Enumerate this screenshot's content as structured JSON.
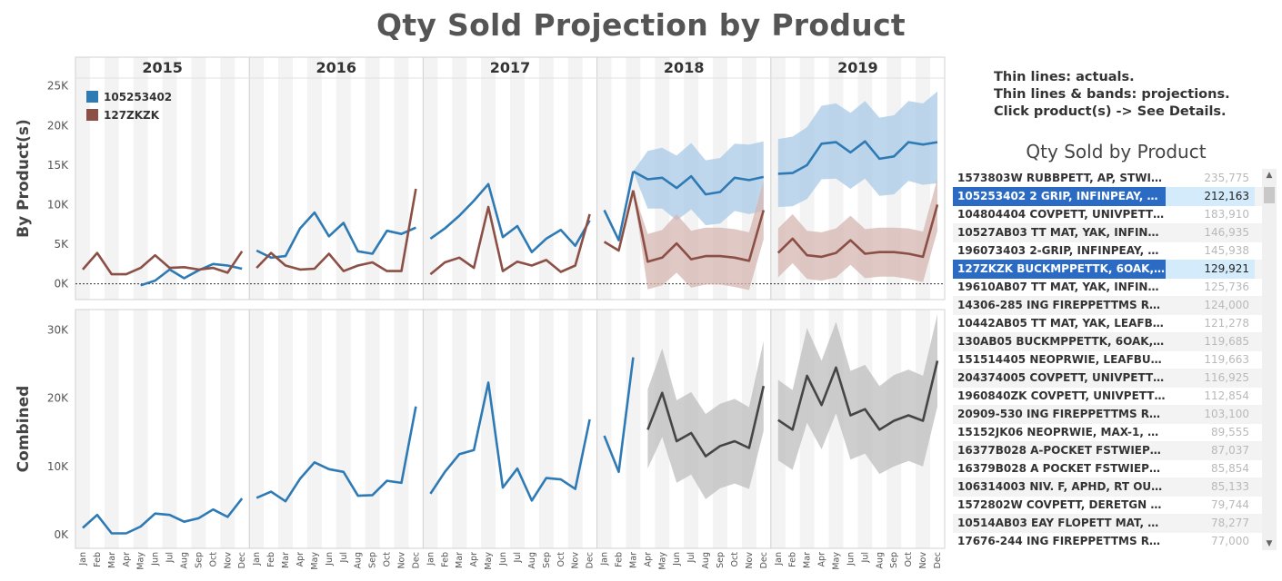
{
  "title": "Qty Sold Projection by Product",
  "notes": [
    "Thin lines: actuals.",
    "Thin lines & bands: projections.",
    "Click product(s) -> See Details."
  ],
  "colors": {
    "product_a": "#2e7ab5",
    "product_b": "#8b4f45",
    "combined_actual": "#2e7ab5",
    "combined_projection": "#454545",
    "band_a": "#a9c9e6",
    "band_b": "#d5b6b2",
    "band_combined": "#bdbdbd",
    "selected_row": "#2c6bc4",
    "selected_value_bg": "#d3ebfa"
  },
  "chart_data": [
    {
      "type": "line",
      "panel": "By Product(s)",
      "ylabel": "By Product(s)",
      "ylim": [
        -2000,
        26000
      ],
      "yticks": [
        0,
        5000,
        10000,
        15000,
        20000,
        25000
      ],
      "ytick_labels": [
        "0K",
        "5K",
        "10K",
        "15K",
        "20K",
        "25K"
      ],
      "years": [
        "2015",
        "2016",
        "2017",
        "2018",
        "2019"
      ],
      "months": [
        "Jan",
        "Feb",
        "Mar",
        "Apr",
        "May",
        "Jun",
        "Jul",
        "Aug",
        "Sep",
        "Oct",
        "Nov",
        "Dec"
      ],
      "legend": [
        "105253402",
        "127ZKZK"
      ],
      "series": [
        {
          "name": "105253402",
          "actual": [
            [
              null,
              null,
              null,
              null,
              -200,
              400,
              1800,
              700,
              1700,
              2500,
              2300,
              1900
            ],
            [
              4200,
              3300,
              3500,
              7000,
              9000,
              6000,
              7700,
              4100,
              3800,
              6700,
              6300,
              7100
            ],
            [
              5700,
              7000,
              8600,
              10500,
              12600,
              5900,
              7300,
              4000,
              5700,
              6800,
              4800,
              8000
            ],
            [
              9300,
              5500,
              14200,
              null,
              null,
              null,
              null,
              null,
              null,
              null,
              null,
              null
            ],
            [
              null,
              null,
              null,
              null,
              null,
              null,
              null,
              null,
              null,
              null,
              null,
              null
            ]
          ],
          "projection": [
            [
              null,
              null,
              14200,
              13200,
              13400,
              12100,
              13600,
              11300,
              11600,
              13400,
              13100,
              13500
            ],
            [
              13900,
              14000,
              15000,
              17700,
              17900,
              16600,
              18000,
              15800,
              16100,
              17900,
              17600,
              17900
            ]
          ],
          "band_low": [
            [
              null,
              null,
              14200,
              9500,
              9500,
              8000,
              9400,
              7400,
              7600,
              9200,
              8800,
              9200
            ],
            [
              9700,
              9800,
              10700,
              13200,
              13300,
              12000,
              13300,
              11100,
              11300,
              13000,
              12500,
              12700
            ]
          ],
          "band_high": [
            [
              null,
              null,
              14200,
              16800,
              17200,
              16200,
              17800,
              15600,
              15900,
              17700,
              17600,
              18000
            ],
            [
              18300,
              18600,
              19800,
              22500,
              22800,
              21600,
              23100,
              21000,
              21300,
              23100,
              22800,
              24300
            ]
          ]
        },
        {
          "name": "127ZKZK",
          "actual": [
            [
              1800,
              3900,
              1200,
              1200,
              2000,
              3600,
              2000,
              2100,
              1800,
              2000,
              1400,
              4100
            ],
            [
              2000,
              3900,
              2300,
              1800,
              1900,
              3800,
              1600,
              2300,
              2700,
              1600,
              1600,
              12000
            ],
            [
              1200,
              2700,
              3300,
              2000,
              9700,
              1600,
              2800,
              2300,
              3000,
              1500,
              2300,
              8800
            ],
            [
              5300,
              4200,
              11800,
              null,
              null,
              null,
              null,
              null,
              null,
              null,
              null,
              null
            ],
            [
              null,
              null,
              null,
              null,
              null,
              null,
              null,
              null,
              null,
              null,
              null,
              null
            ]
          ],
          "projection": [
            [
              null,
              null,
              11800,
              2800,
              3300,
              5100,
              3100,
              3500,
              3500,
              3300,
              2900,
              9300
            ],
            [
              3900,
              5700,
              3600,
              3400,
              3900,
              5500,
              3800,
              4000,
              4000,
              3800,
              3400,
              10000
            ]
          ],
          "band_low": [
            [
              null,
              null,
              11800,
              -700,
              -200,
              1400,
              -500,
              -100,
              -100,
              -400,
              -800,
              5600
            ],
            [
              800,
              2600,
              600,
              400,
              800,
              2400,
              700,
              900,
              900,
              600,
              200,
              6700
            ]
          ],
          "band_high": [
            [
              null,
              null,
              11800,
              6300,
              6800,
              8800,
              6700,
              7100,
              7100,
              6900,
              6500,
              13000
            ],
            [
              7000,
              8800,
              6700,
              6500,
              7000,
              8600,
              6900,
              7100,
              7100,
              7000,
              6600,
              13300
            ]
          ]
        }
      ]
    },
    {
      "type": "line",
      "panel": "Combined",
      "ylabel": "Combined",
      "ylim": [
        -2000,
        33000
      ],
      "yticks": [
        0,
        10000,
        20000,
        30000
      ],
      "ytick_labels": [
        "0K",
        "10K",
        "20K",
        "30K"
      ],
      "series": [
        {
          "name": "Combined",
          "actual": [
            [
              1000,
              2900,
              200,
              200,
              1200,
              3100,
              2900,
              1900,
              2400,
              3700,
              2600,
              5300
            ],
            [
              5400,
              6300,
              4900,
              8200,
              10600,
              9600,
              9200,
              5700,
              5800,
              7900,
              7600,
              18800
            ],
            [
              6000,
              9200,
              11800,
              12400,
              22300,
              6900,
              9700,
              5000,
              8300,
              8100,
              6700,
              16900
            ],
            [
              14500,
              9200,
              26000,
              null,
              null,
              null,
              null,
              null,
              null,
              null,
              null,
              null
            ],
            [
              null,
              null,
              null,
              null,
              null,
              null,
              null,
              null,
              null,
              null,
              null,
              null
            ]
          ],
          "projection": [
            [
              null,
              null,
              null,
              15400,
              20800,
              13700,
              14900,
              11500,
              13000,
              13700,
              12700,
              21800
            ],
            [
              16800,
              15400,
              23300,
              19000,
              24500,
              17500,
              18400,
              15400,
              16700,
              17500,
              16700,
              25500
            ]
          ],
          "band_low": [
            [
              null,
              null,
              null,
              9700,
              14300,
              7600,
              8800,
              5200,
              6800,
              7500,
              6700,
              15200
            ],
            [
              10900,
              9500,
              16400,
              12500,
              17800,
              11000,
              11900,
              8900,
              10000,
              10800,
              10000,
              18800
            ]
          ],
          "band_high": [
            [
              null,
              null,
              null,
              21300,
              27300,
              19700,
              20900,
              17700,
              19200,
              19900,
              18700,
              28400
            ],
            [
              22700,
              21200,
              30300,
              25500,
              31200,
              24000,
              24900,
              21800,
              23400,
              24200,
              23300,
              32300
            ]
          ]
        }
      ]
    }
  ],
  "side_panel": {
    "title": "Qty Sold by Product",
    "rows": [
      {
        "name": "1573803W   RUBBPETT, AP, STWIE, ...",
        "value": "235,775",
        "selected": false
      },
      {
        "name": "105253402   2 GRIP, INFINPEAY, ST...",
        "value": "212,163",
        "selected": true
      },
      {
        "name": "104804404   COVPETT, UNIVPETTPE...",
        "value": "183,910",
        "selected": false
      },
      {
        "name": "10527AB03   TT MAT, YAK, INFINPE...",
        "value": "146,935",
        "selected": false
      },
      {
        "name": "196073403   2-GRIP, INFINPEAY, MR...",
        "value": "145,938",
        "selected": false
      },
      {
        "name": "127ZKZK   BUCKMPPETTK, 6OAK, ...",
        "value": "129,921",
        "selected": true
      },
      {
        "name": "19610AB07   TT MAT, YAK, INFINPE...",
        "value": "125,736",
        "selected": false
      },
      {
        "name": "14306-285   ING FIREPPETTMS REC...",
        "value": "124,000",
        "selected": false
      },
      {
        "name": "10442AB05   TT MAT, YAK, LEAFBU,...",
        "value": "121,278",
        "selected": false
      },
      {
        "name": "130AB05   BUCKMPPETTK, 6OAK, P...",
        "value": "119,685",
        "selected": false
      },
      {
        "name": "151514405   NEOPRWIE, LEAFBU, PI...",
        "value": "119,663",
        "selected": false
      },
      {
        "name": "204374005   COVPETT, UNIVPETTPE...",
        "value": "116,925",
        "selected": false
      },
      {
        "name": "1960840ZK   COVPETT, UNIVPETTP...",
        "value": "112,854",
        "selected": false
      },
      {
        "name": "20909-530   ING FIREPPETTMS REC...",
        "value": "103,100",
        "selected": false
      },
      {
        "name": "15152JK06   NEOPRWIE, MAX-1, RT ...",
        "value": "89,555",
        "selected": false
      },
      {
        "name": "16377B028   A-POCKET FSTWIEPET...",
        "value": "87,037",
        "selected": false
      },
      {
        "name": "16379B028   A POCKET FSTWIEPET...",
        "value": "85,854",
        "selected": false
      },
      {
        "name": "106314003   NIV. F, APHD, RT OUTF...",
        "value": "85,133",
        "selected": false
      },
      {
        "name": "1572802W   COVPETT, DERETGN F, ...",
        "value": "79,744",
        "selected": false
      },
      {
        "name": "10514AB03   EAY FLOPETT MAT, AP...",
        "value": "78,277",
        "selected": false
      },
      {
        "name": "17676-244   ING FIREPPETTMS REC...",
        "value": "77,000",
        "selected": false
      }
    ]
  }
}
